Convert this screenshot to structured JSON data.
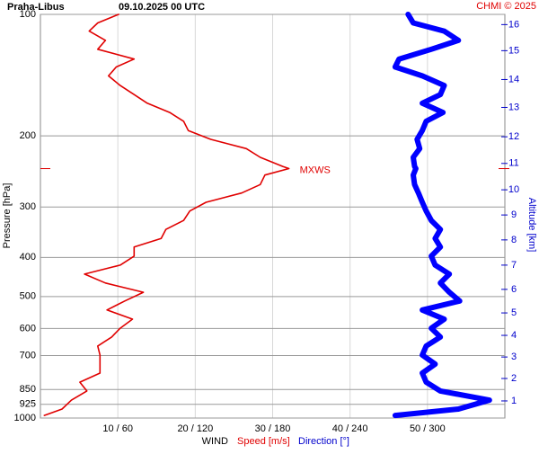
{
  "chart_data": {
    "type": "line",
    "title": "Praha-Libus",
    "subtitle": "09.10.2025 00 UTC",
    "credit": "CHMI © 2025",
    "ylabel": "Pressure [hPa]",
    "y2label": "Altitude [km]",
    "xlabel": "WIND",
    "annotation": "MXWS",
    "log_y": true,
    "grid": true,
    "pressure": [
      100,
      105,
      110,
      116,
      122,
      129,
      135,
      142,
      150,
      158,
      166,
      175,
      184,
      194,
      204,
      215,
      226,
      238,
      241,
      250,
      264,
      277,
      292,
      307,
      324,
      341,
      359,
      377,
      397,
      418,
      440,
      463,
      488,
      513,
      540,
      569,
      599,
      630,
      663,
      698,
      735,
      774,
      815,
      857,
      903,
      950,
      985
    ],
    "series": [
      {
        "name": "Speed [m/s]",
        "color": "#e00000",
        "values": [
          10.1,
          7.4,
          6.3,
          8.4,
          7.4,
          12.1,
          9.8,
          8.8,
          10.3,
          12.1,
          13.8,
          16.7,
          18.5,
          19.1,
          22.0,
          26.6,
          28.4,
          31.3,
          32.1,
          29.0,
          28.4,
          26.0,
          21.4,
          19.3,
          18.5,
          16.2,
          15.6,
          12.1,
          12.1,
          10.3,
          5.7,
          8.4,
          13.3,
          10.9,
          8.6,
          11.9,
          10.3,
          9.2,
          7.4,
          7.7,
          7.7,
          7.7,
          5.1,
          6.0,
          4.0,
          2.8,
          0.5
        ]
      },
      {
        "name": "Direction [°]",
        "color": "#0000ff",
        "axis": "dir",
        "values": [
          285,
          289,
          313,
          324,
          303,
          278,
          275,
          296,
          313,
          310,
          296,
          312,
          299,
          296,
          292,
          294,
          289,
          290,
          291,
          289,
          290,
          293,
          296,
          299,
          303,
          310,
          306,
          310,
          303,
          306,
          317,
          310,
          317,
          325,
          296,
          313,
          303,
          310,
          299,
          296,
          306,
          296,
          299,
          310,
          348,
          324,
          275
        ]
      }
    ],
    "xlim": [
      0,
      60
    ],
    "dirlim": [
      0,
      360
    ],
    "xticks": [
      {
        "value": 10,
        "label": "10 / 60"
      },
      {
        "value": 20,
        "label": "20 / 120"
      },
      {
        "value": 30,
        "label": "30 / 180"
      },
      {
        "value": 40,
        "label": "40 / 240"
      },
      {
        "value": 50,
        "label": "50 / 300"
      }
    ],
    "ylim": [
      1000,
      100
    ],
    "yticks": [
      100,
      200,
      300,
      400,
      500,
      600,
      700,
      850,
      925,
      1000
    ],
    "y2ticks": [
      16,
      15,
      14,
      13,
      12,
      11,
      10,
      9,
      8,
      7,
      6,
      5,
      4,
      3,
      2,
      1
    ],
    "y2tick_pressures": [
      106,
      123,
      145,
      170,
      201,
      234,
      272,
      314,
      362,
      418,
      480,
      549,
      624,
      706,
      798,
      907
    ]
  }
}
